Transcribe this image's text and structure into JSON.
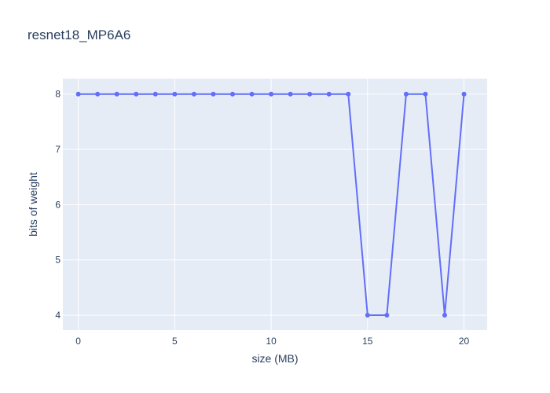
{
  "chart_data": {
    "type": "line",
    "title": "resnet18_MP6A6",
    "xlabel": "size (MB)",
    "ylabel": "bits of weight",
    "xlim": [
      -0.8,
      21.2
    ],
    "ylim": [
      3.73,
      8.28
    ],
    "x_ticks": [
      0,
      5,
      10,
      15,
      20
    ],
    "y_ticks": [
      4,
      5,
      6,
      7,
      8
    ],
    "grid": true,
    "legend": "none",
    "colors": {
      "line": "#636efa",
      "plot_bg": "#e5ecf6",
      "grid": "#ffffff",
      "text": "#2a3f5f"
    },
    "series": [
      {
        "x": [
          0,
          1,
          2,
          3,
          4,
          5,
          6,
          7,
          8,
          9,
          10,
          11,
          12,
          13,
          14,
          15,
          16,
          17,
          18,
          19,
          20
        ],
        "y": [
          8,
          8,
          8,
          8,
          8,
          8,
          8,
          8,
          8,
          8,
          8,
          8,
          8,
          8,
          8,
          4,
          4,
          8,
          8,
          4,
          8
        ]
      }
    ]
  }
}
